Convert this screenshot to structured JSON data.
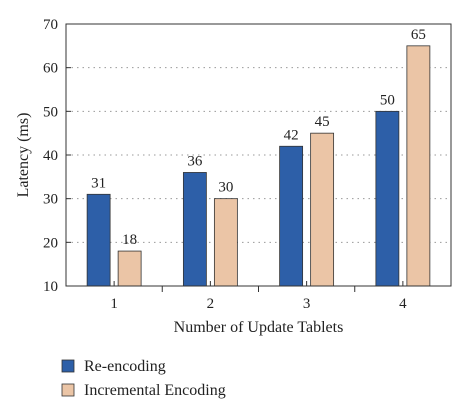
{
  "chart_data": {
    "type": "bar",
    "categories": [
      "1",
      "2",
      "3",
      "4"
    ],
    "series": [
      {
        "name": "Re-encoding",
        "values": [
          31,
          36,
          42,
          50
        ],
        "color": "#2d5fa8"
      },
      {
        "name": "Incremental Encoding",
        "values": [
          18,
          30,
          45,
          65
        ],
        "color": "#ebc5a6"
      }
    ],
    "xlabel": "Number of Update Tablets",
    "ylabel": "Latency (ms)",
    "ylim": [
      10,
      70
    ],
    "yticks": [
      "10",
      "20",
      "30",
      "40",
      "50",
      "60",
      "70"
    ],
    "grid": "y-dotted",
    "legend_position": "bottom-left"
  }
}
